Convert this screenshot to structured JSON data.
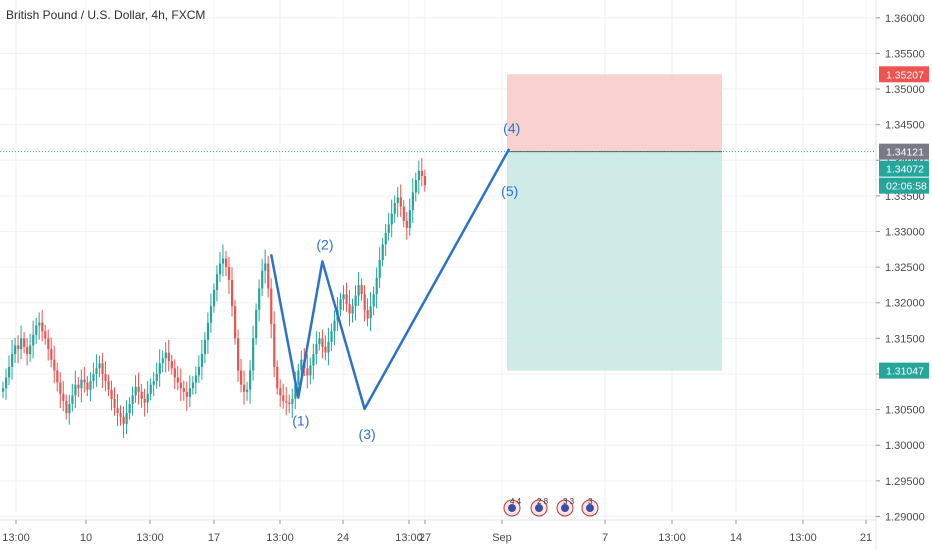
{
  "title": "British Pound / U.S. Dollar, 4h, FXCM",
  "colors": {
    "up": "#26a69a",
    "down": "#ef5350",
    "wave": "#2c72c7",
    "stop_zone": "#f8c9c5",
    "target_zone": "#c5e8e3",
    "grid": "#eef1f5",
    "stop_badge": "#ef5350",
    "entry_badge": "#787b86",
    "last_badge": "#26a69a",
    "target_badge": "#26a69a"
  },
  "chart_data": {
    "type": "candlestick",
    "ylim": [
      1.2895,
      1.3625
    ],
    "y_ticks": [
      "1.36000",
      "1.35500",
      "1.35000",
      "1.34500",
      "1.34000",
      "1.33500",
      "1.33000",
      "1.32500",
      "1.32000",
      "1.31500",
      "1.31000",
      "1.30500",
      "1.30000",
      "1.29500",
      "1.29000"
    ],
    "x_ticks": [
      "13:00",
      "10",
      "13:00",
      "17",
      "13:00",
      "24",
      "13:00",
      "27",
      "Sep",
      "7",
      "13:00",
      "14",
      "13:00",
      "21"
    ],
    "seed_open": 1.3075,
    "candle_closes": [
      1.308,
      1.3095,
      1.311,
      1.3128,
      1.314,
      1.3135,
      1.315,
      1.3138,
      1.3128,
      1.314,
      1.3155,
      1.3168,
      1.3172,
      1.316,
      1.315,
      1.3135,
      1.312,
      1.3105,
      1.3088,
      1.3072,
      1.3062,
      1.3045,
      1.3058,
      1.307,
      1.3085,
      1.308,
      1.3092,
      1.3088,
      1.3078,
      1.309,
      1.31,
      1.3108,
      1.3115,
      1.31,
      1.309,
      1.3078,
      1.3065,
      1.3052,
      1.3045,
      1.304,
      1.303,
      1.3045,
      1.3058,
      1.307,
      1.3082,
      1.3075,
      1.3065,
      1.306,
      1.3072,
      1.3085,
      1.309,
      1.31,
      1.3115,
      1.3122,
      1.313,
      1.3118,
      1.3108,
      1.3095,
      1.3088,
      1.308,
      1.3075,
      1.3068,
      1.308,
      1.3088,
      1.3098,
      1.311,
      1.3128,
      1.3148,
      1.3172,
      1.3195,
      1.3218,
      1.324,
      1.3255,
      1.3262,
      1.325,
      1.3232,
      1.3195,
      1.315,
      1.3105,
      1.3085,
      1.3075,
      1.3078,
      1.3105,
      1.315,
      1.319,
      1.322,
      1.3245,
      1.3255,
      1.322,
      1.317,
      1.311,
      1.308,
      1.307,
      1.3062,
      1.306,
      1.3058,
      1.3065,
      1.3085,
      1.3105,
      1.312,
      1.3108,
      1.3098,
      1.3112,
      1.3128,
      1.3142,
      1.315,
      1.3138,
      1.313,
      1.3145,
      1.316,
      1.3175,
      1.319,
      1.3205,
      1.3212,
      1.3198,
      1.3185,
      1.3195,
      1.321,
      1.3225,
      1.3212,
      1.319,
      1.3178,
      1.3195,
      1.3212,
      1.3235,
      1.326,
      1.3282,
      1.3298,
      1.331,
      1.3325,
      1.334,
      1.3348,
      1.3335,
      1.3315,
      1.3305,
      1.333,
      1.3355,
      1.3372,
      1.3385,
      1.3378,
      1.3365
    ],
    "entry": 1.34121,
    "stop": 1.35207,
    "target": 1.31047,
    "last_price": 1.34072,
    "countdown": "02:06:58",
    "wave_points": [
      {
        "label": "",
        "x_bar": 89,
        "y": 1.3268
      },
      {
        "label": "(1)",
        "x_bar": 98,
        "y": 1.3067
      },
      {
        "label": "(2)",
        "x_bar": 106,
        "y": 1.3258
      },
      {
        "label": "(3)",
        "x_bar": 120,
        "y": 1.3051
      },
      {
        "label": "(4)",
        "x_bar": 168,
        "y": 1.3416
      },
      {
        "label": "(5)",
        "x_bar": 166,
        "y": 1.3385
      }
    ]
  }
}
